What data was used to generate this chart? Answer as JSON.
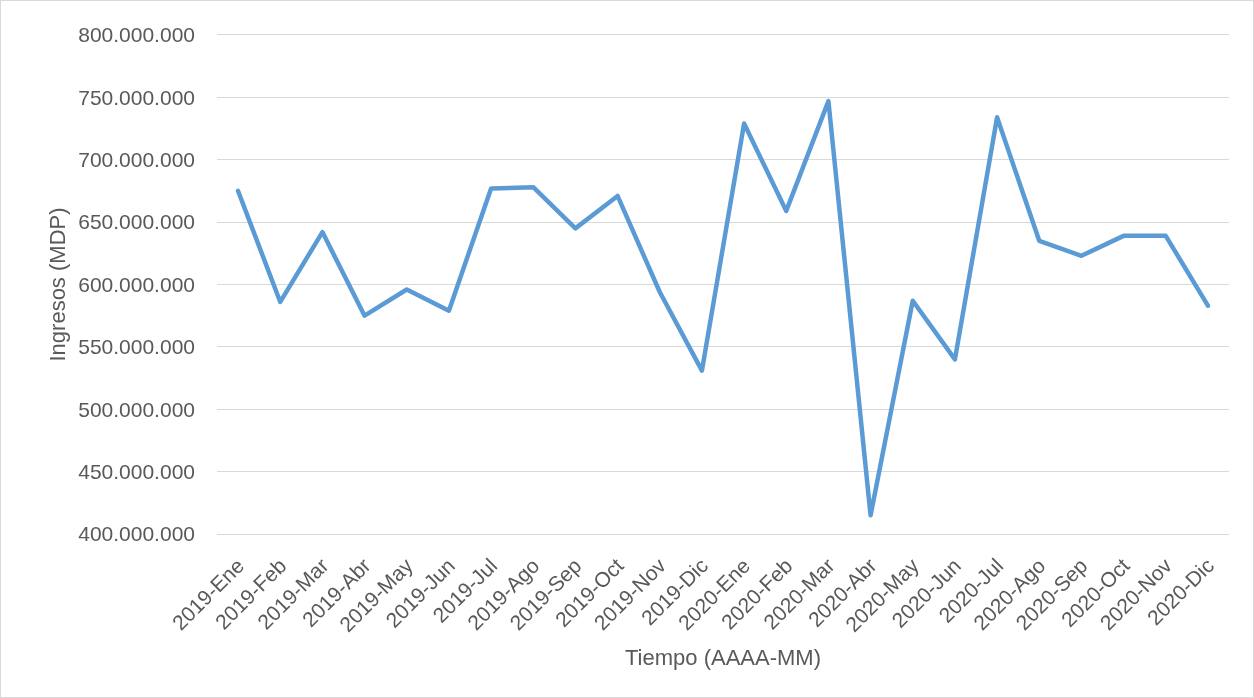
{
  "chart_data": {
    "type": "line",
    "xlabel": "Tiempo (AAAA-MM)",
    "ylabel": "Ingresos (MDP)",
    "categories": [
      "2019-Ene",
      "2019-Feb",
      "2019-Mar",
      "2019-Abr",
      "2019-May",
      "2019-Jun",
      "2019-Jul",
      "2019-Ago",
      "2019-Sep",
      "2019-Oct",
      "2019-Nov",
      "2019-Dic",
      "2020-Ene",
      "2020-Feb",
      "2020-Mar",
      "2020-Abr",
      "2020-May",
      "2020-Jun",
      "2020-Jul",
      "2020-Ago",
      "2020-Sep",
      "2020-Oct",
      "2020-Nov",
      "2020-Dic"
    ],
    "series": [
      {
        "color": "#5b9bd5",
        "values": [
          675000000,
          586000000,
          642000000,
          575000000,
          596000000,
          579000000,
          677000000,
          678000000,
          645000000,
          671000000,
          594000000,
          531000000,
          729000000,
          659000000,
          747000000,
          415000000,
          587000000,
          540000000,
          734000000,
          635000000,
          623000000,
          639000000,
          639000000,
          583000000
        ]
      }
    ],
    "ylim": [
      400000000,
      800000000
    ],
    "yticks": [
      {
        "value": 400000000,
        "label": "400.000.000"
      },
      {
        "value": 450000000,
        "label": "450.000.000"
      },
      {
        "value": 500000000,
        "label": "500.000.000"
      },
      {
        "value": 550000000,
        "label": "550.000.000"
      },
      {
        "value": 600000000,
        "label": "600.000.000"
      },
      {
        "value": 650000000,
        "label": "650.000.000"
      },
      {
        "value": 700000000,
        "label": "700.000.000"
      },
      {
        "value": 750000000,
        "label": "750.000.000"
      },
      {
        "value": 800000000,
        "label": "800.000.000"
      }
    ],
    "grid": "y",
    "marker": "none",
    "line_style": "solid"
  }
}
